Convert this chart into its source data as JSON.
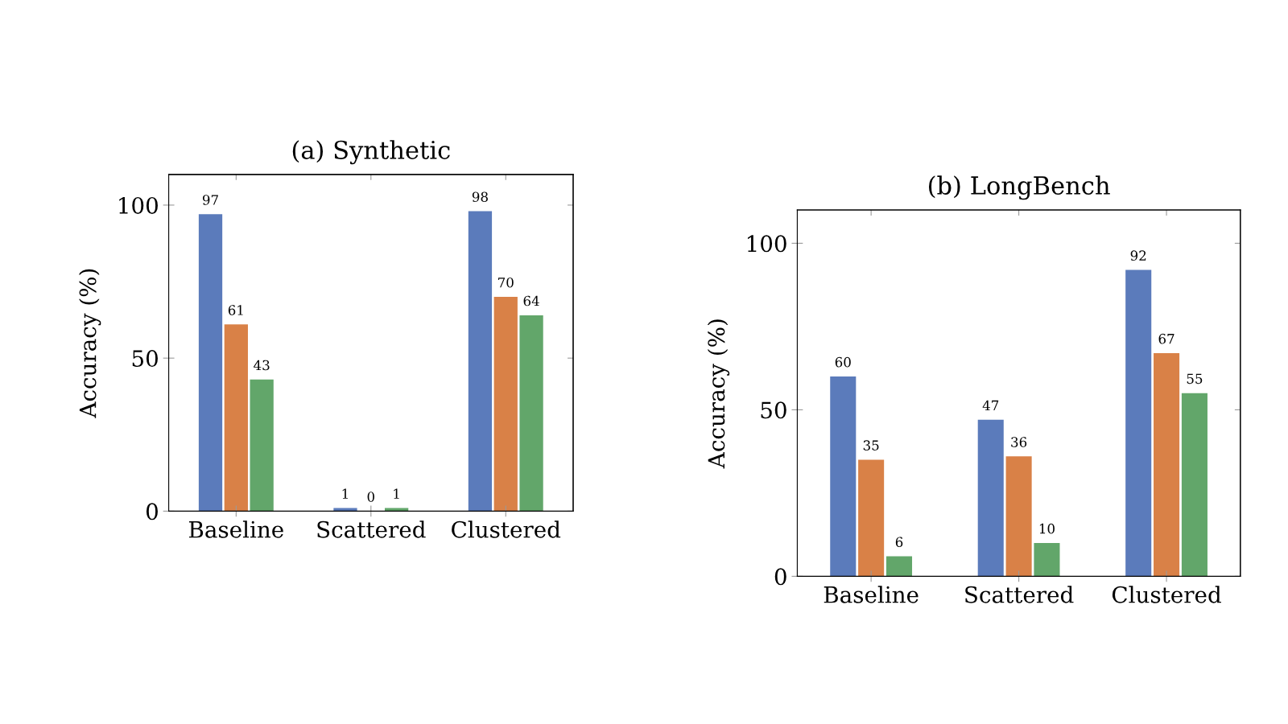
{
  "chart_data": [
    {
      "type": "bar",
      "title": "(a) Synthetic",
      "ylabel": "Accuracy (%)",
      "categories": [
        "Baseline",
        "Scattered",
        "Clustered"
      ],
      "series": [
        {
          "color": "#5b7bbb",
          "values": [
            97,
            1,
            98
          ]
        },
        {
          "color": "#d98147",
          "values": [
            61,
            0,
            70
          ]
        },
        {
          "color": "#62a66a",
          "values": [
            43,
            1,
            64
          ]
        }
      ],
      "ylim": [
        0,
        110
      ],
      "yticks": [
        0,
        50,
        100
      ],
      "data_labels": true,
      "grid": false,
      "legend": false
    },
    {
      "type": "bar",
      "title": "(b) LongBench",
      "ylabel": "Accuracy (%)",
      "categories": [
        "Baseline",
        "Scattered",
        "Clustered"
      ],
      "series": [
        {
          "color": "#5b7bbb",
          "values": [
            60,
            47,
            92
          ]
        },
        {
          "color": "#d98147",
          "values": [
            35,
            36,
            67
          ]
        },
        {
          "color": "#62a66a",
          "values": [
            6,
            10,
            55
          ]
        }
      ],
      "ylim": [
        0,
        110
      ],
      "yticks": [
        0,
        50,
        100
      ],
      "data_labels": true,
      "grid": false,
      "legend": false
    }
  ]
}
